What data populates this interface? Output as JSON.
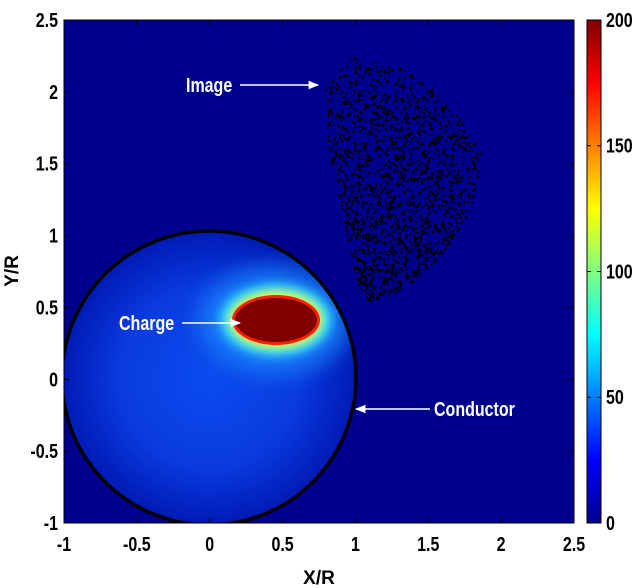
{
  "chart_data": {
    "type": "heatmap",
    "xlabel": "X/R",
    "ylabel": "Y/R",
    "xlim": [
      -1,
      2.5
    ],
    "ylim": [
      -1,
      2.5
    ],
    "xticks": [
      "-1",
      "-0.5",
      "0",
      "0.5",
      "1",
      "1.5",
      "2",
      "2.5"
    ],
    "yticks": [
      "-1",
      "-0.5",
      "0",
      "0.5",
      "1",
      "1.5",
      "2",
      "2.5"
    ],
    "colorbar": {
      "min": 0,
      "max": 200,
      "ticks": [
        "0",
        "50",
        "100",
        "150",
        "200"
      ],
      "colormap": "jet"
    },
    "conductor": {
      "center": [
        0,
        0
      ],
      "radius": 1
    },
    "charge": {
      "center": [
        0.47,
        0.43
      ],
      "semi_axis_x": 0.28,
      "semi_axis_y": 0.13
    },
    "image_cloud": {
      "top": [
        0.8,
        2.05
      ],
      "bottom": [
        1.12,
        0.52
      ],
      "right_extent": 1.88
    },
    "annotations": [
      {
        "id": "image",
        "text": "Image"
      },
      {
        "id": "charge",
        "text": "Charge"
      },
      {
        "id": "conductor",
        "text": "Conductor"
      }
    ],
    "colors": {
      "background": "#00008f",
      "saturated": "#800000",
      "circle": "#000000",
      "dots": "#000000",
      "arrows": "#ffffff"
    }
  }
}
